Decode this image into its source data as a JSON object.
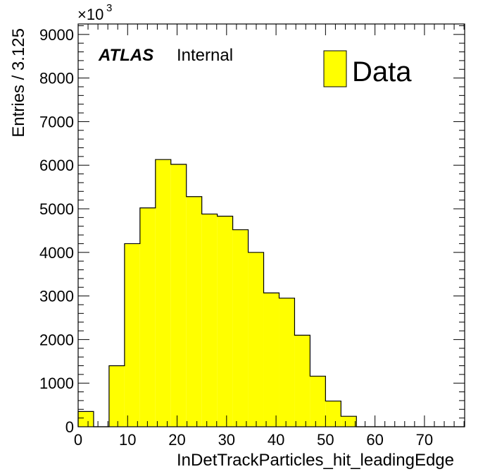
{
  "chart_data": {
    "type": "bar",
    "histogram": true,
    "bin_edges": [
      0,
      3.125,
      6.25,
      9.375,
      12.5,
      15.625,
      18.75,
      21.875,
      25,
      28.125,
      31.25,
      34.375,
      37.5,
      40.625,
      43.75,
      46.875,
      50,
      53.125,
      56.25,
      59.375,
      62.5,
      65.625,
      68.75,
      71.875,
      75,
      78.125
    ],
    "values": [
      350,
      0,
      1400,
      4200,
      5020,
      6130,
      6020,
      5280,
      4880,
      4830,
      4520,
      4000,
      3070,
      2950,
      2100,
      1160,
      590,
      240,
      0,
      0,
      0,
      0,
      0,
      0,
      0
    ],
    "xlim": [
      0,
      78.125
    ],
    "ylim": [
      0,
      9240
    ],
    "x_ticks": [
      0,
      10,
      20,
      30,
      40,
      50,
      60,
      70
    ],
    "y_ticks": [
      0,
      1000,
      2000,
      3000,
      4000,
      5000,
      6000,
      7000,
      8000,
      9000
    ],
    "x_tick_labels": [
      "0",
      "10",
      "20",
      "30",
      "40",
      "50",
      "60",
      "70"
    ],
    "y_tick_labels": [
      "0",
      "1000",
      "2000",
      "3000",
      "4000",
      "5000",
      "6000",
      "7000",
      "8000",
      "9000"
    ],
    "xlabel": "InDetTrackParticles_hit_leadingEdge",
    "ylabel": "Entries / 3.125",
    "y_multiplier_base": "×10",
    "y_multiplier_exp": "3",
    "atlas_label": "ATLAS",
    "atlas_sublabel": "Internal",
    "legend": [
      {
        "name": "Data",
        "color": "#ffff00"
      }
    ],
    "legend_position": "top-right",
    "fill_color": "#ffff00",
    "line_color": "#000000",
    "grid": false
  }
}
